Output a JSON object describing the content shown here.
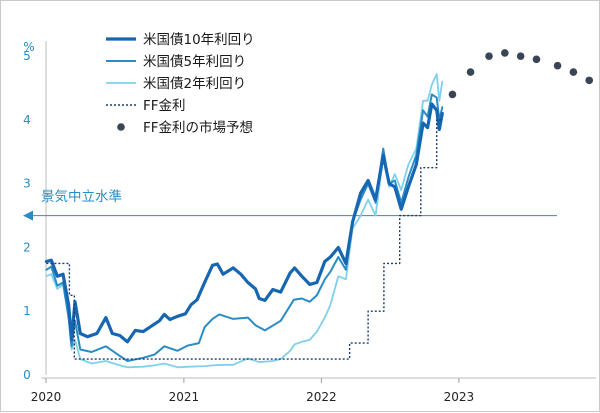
{
  "chart_data": {
    "type": "line",
    "ylabel": "%",
    "ylim": [
      0,
      5.3
    ],
    "xlim": [
      "2020-01-01",
      "2023-12-31"
    ],
    "yticks": [
      "0",
      "1",
      "2",
      "3",
      "4",
      "5"
    ],
    "xticks": [
      {
        "label": "2020",
        "date": "2020-01-01"
      },
      {
        "label": "2021",
        "date": "2021-01-01"
      },
      {
        "label": "2022",
        "date": "2022-01-01"
      },
      {
        "label": "2023",
        "date": "2023-01-01"
      }
    ],
    "reference_line": {
      "label": "景気中立水準",
      "y": 2.5,
      "color": "#2a8cc4"
    },
    "colors": {
      "y10": "#1666b1",
      "y5": "#2a8cc4",
      "y2": "#7fd0ee",
      "ff": "#1f3a6e",
      "forecast": "#3a4655",
      "axis": "#2a8cc4"
    },
    "legend": {
      "placement": "top-center",
      "items": [
        "米国債10年利回り",
        "米国債5年利回り",
        "米国債2年利回り",
        "FF金利",
        "FF金利の市場予想"
      ]
    },
    "series": [
      {
        "name": "米国債10年利回り",
        "points": [
          [
            "2020-01-02",
            1.78
          ],
          [
            "2020-01-15",
            1.8
          ],
          [
            "2020-01-31",
            1.55
          ],
          [
            "2020-02-15",
            1.58
          ],
          [
            "2020-03-01",
            1.1
          ],
          [
            "2020-03-09",
            0.55
          ],
          [
            "2020-03-18",
            1.15
          ],
          [
            "2020-04-01",
            0.65
          ],
          [
            "2020-04-20",
            0.6
          ],
          [
            "2020-05-15",
            0.65
          ],
          [
            "2020-06-08",
            0.9
          ],
          [
            "2020-06-25",
            0.65
          ],
          [
            "2020-07-15",
            0.62
          ],
          [
            "2020-08-04",
            0.52
          ],
          [
            "2020-08-25",
            0.7
          ],
          [
            "2020-09-15",
            0.68
          ],
          [
            "2020-10-10",
            0.78
          ],
          [
            "2020-10-28",
            0.85
          ],
          [
            "2020-11-10",
            0.95
          ],
          [
            "2020-11-25",
            0.87
          ],
          [
            "2020-12-15",
            0.92
          ],
          [
            "2021-01-05",
            0.96
          ],
          [
            "2021-01-20",
            1.1
          ],
          [
            "2021-02-05",
            1.18
          ],
          [
            "2021-02-25",
            1.45
          ],
          [
            "2021-03-18",
            1.72
          ],
          [
            "2021-03-31",
            1.74
          ],
          [
            "2021-04-15",
            1.58
          ],
          [
            "2021-05-12",
            1.68
          ],
          [
            "2021-06-01",
            1.58
          ],
          [
            "2021-06-20",
            1.45
          ],
          [
            "2021-07-10",
            1.35
          ],
          [
            "2021-07-20",
            1.2
          ],
          [
            "2021-08-04",
            1.17
          ],
          [
            "2021-08-25",
            1.34
          ],
          [
            "2021-09-15",
            1.3
          ],
          [
            "2021-10-10",
            1.6
          ],
          [
            "2021-10-22",
            1.68
          ],
          [
            "2021-11-10",
            1.55
          ],
          [
            "2021-12-01",
            1.42
          ],
          [
            "2021-12-20",
            1.45
          ],
          [
            "2022-01-10",
            1.78
          ],
          [
            "2022-01-25",
            1.85
          ],
          [
            "2022-02-15",
            2.0
          ],
          [
            "2022-03-07",
            1.75
          ],
          [
            "2022-03-25",
            2.4
          ],
          [
            "2022-04-15",
            2.85
          ],
          [
            "2022-05-05",
            3.05
          ],
          [
            "2022-05-25",
            2.75
          ],
          [
            "2022-06-14",
            3.45
          ],
          [
            "2022-06-30",
            3.0
          ],
          [
            "2022-07-15",
            2.95
          ],
          [
            "2022-08-01",
            2.6
          ],
          [
            "2022-08-20",
            2.95
          ],
          [
            "2022-09-10",
            3.3
          ],
          [
            "2022-09-28",
            3.95
          ],
          [
            "2022-10-10",
            3.88
          ],
          [
            "2022-10-21",
            4.25
          ],
          [
            "2022-11-03",
            4.15
          ],
          [
            "2022-11-10",
            3.85
          ],
          [
            "2022-11-18",
            4.1
          ]
        ]
      },
      {
        "name": "米国債5年利回り",
        "points": [
          [
            "2020-01-02",
            1.65
          ],
          [
            "2020-01-15",
            1.7
          ],
          [
            "2020-01-31",
            1.4
          ],
          [
            "2020-02-15",
            1.45
          ],
          [
            "2020-03-01",
            0.9
          ],
          [
            "2020-03-09",
            0.45
          ],
          [
            "2020-03-18",
            0.85
          ],
          [
            "2020-04-01",
            0.4
          ],
          [
            "2020-05-01",
            0.36
          ],
          [
            "2020-06-08",
            0.45
          ],
          [
            "2020-07-15",
            0.3
          ],
          [
            "2020-08-04",
            0.22
          ],
          [
            "2020-09-15",
            0.27
          ],
          [
            "2020-10-15",
            0.32
          ],
          [
            "2020-11-10",
            0.45
          ],
          [
            "2020-12-15",
            0.38
          ],
          [
            "2021-01-10",
            0.46
          ],
          [
            "2021-02-10",
            0.5
          ],
          [
            "2021-02-25",
            0.75
          ],
          [
            "2021-03-18",
            0.88
          ],
          [
            "2021-04-05",
            0.95
          ],
          [
            "2021-05-12",
            0.88
          ],
          [
            "2021-06-20",
            0.9
          ],
          [
            "2021-07-10",
            0.78
          ],
          [
            "2021-08-04",
            0.7
          ],
          [
            "2021-09-15",
            0.85
          ],
          [
            "2021-10-20",
            1.18
          ],
          [
            "2021-11-10",
            1.2
          ],
          [
            "2021-12-01",
            1.15
          ],
          [
            "2021-12-20",
            1.25
          ],
          [
            "2022-01-10",
            1.5
          ],
          [
            "2022-01-25",
            1.62
          ],
          [
            "2022-02-15",
            1.85
          ],
          [
            "2022-03-07",
            1.65
          ],
          [
            "2022-03-25",
            2.4
          ],
          [
            "2022-04-15",
            2.75
          ],
          [
            "2022-05-05",
            3.0
          ],
          [
            "2022-05-25",
            2.7
          ],
          [
            "2022-06-14",
            3.55
          ],
          [
            "2022-06-30",
            3.0
          ],
          [
            "2022-07-15",
            3.05
          ],
          [
            "2022-08-01",
            2.7
          ],
          [
            "2022-08-20",
            3.1
          ],
          [
            "2022-09-10",
            3.45
          ],
          [
            "2022-09-28",
            4.15
          ],
          [
            "2022-10-10",
            4.05
          ],
          [
            "2022-10-21",
            4.4
          ],
          [
            "2022-11-03",
            4.35
          ],
          [
            "2022-11-10",
            4.0
          ],
          [
            "2022-11-18",
            4.2
          ]
        ]
      },
      {
        "name": "米国債2年利回り",
        "points": [
          [
            "2020-01-02",
            1.55
          ],
          [
            "2020-01-15",
            1.58
          ],
          [
            "2020-01-31",
            1.35
          ],
          [
            "2020-02-15",
            1.42
          ],
          [
            "2020-03-01",
            0.9
          ],
          [
            "2020-03-09",
            0.4
          ],
          [
            "2020-03-18",
            0.55
          ],
          [
            "2020-04-01",
            0.25
          ],
          [
            "2020-05-01",
            0.18
          ],
          [
            "2020-06-08",
            0.22
          ],
          [
            "2020-07-15",
            0.15
          ],
          [
            "2020-08-04",
            0.12
          ],
          [
            "2020-09-15",
            0.13
          ],
          [
            "2020-10-15",
            0.15
          ],
          [
            "2020-11-10",
            0.18
          ],
          [
            "2020-12-15",
            0.12
          ],
          [
            "2021-01-15",
            0.13
          ],
          [
            "2021-02-25",
            0.14
          ],
          [
            "2021-03-18",
            0.15
          ],
          [
            "2021-04-15",
            0.16
          ],
          [
            "2021-05-12",
            0.16
          ],
          [
            "2021-06-20",
            0.26
          ],
          [
            "2021-07-20",
            0.2
          ],
          [
            "2021-08-25",
            0.22
          ],
          [
            "2021-09-15",
            0.25
          ],
          [
            "2021-10-10",
            0.38
          ],
          [
            "2021-10-22",
            0.48
          ],
          [
            "2021-11-10",
            0.52
          ],
          [
            "2021-12-01",
            0.55
          ],
          [
            "2021-12-20",
            0.68
          ],
          [
            "2022-01-10",
            0.9
          ],
          [
            "2022-01-25",
            1.1
          ],
          [
            "2022-02-15",
            1.55
          ],
          [
            "2022-03-07",
            1.5
          ],
          [
            "2022-03-25",
            2.3
          ],
          [
            "2022-04-15",
            2.5
          ],
          [
            "2022-05-05",
            2.75
          ],
          [
            "2022-05-25",
            2.5
          ],
          [
            "2022-06-14",
            3.4
          ],
          [
            "2022-06-30",
            2.95
          ],
          [
            "2022-07-15",
            3.15
          ],
          [
            "2022-08-01",
            2.9
          ],
          [
            "2022-08-20",
            3.3
          ],
          [
            "2022-09-10",
            3.55
          ],
          [
            "2022-09-28",
            4.3
          ],
          [
            "2022-10-10",
            4.3
          ],
          [
            "2022-10-21",
            4.55
          ],
          [
            "2022-11-03",
            4.72
          ],
          [
            "2022-11-10",
            4.3
          ],
          [
            "2022-11-18",
            4.6
          ]
        ]
      },
      {
        "name": "FF金利",
        "step": true,
        "points": [
          [
            "2020-01-02",
            1.75
          ],
          [
            "2020-03-03",
            1.25
          ],
          [
            "2020-03-16",
            0.25
          ],
          [
            "2022-03-17",
            0.5
          ],
          [
            "2022-05-05",
            1.0
          ],
          [
            "2022-06-16",
            1.75
          ],
          [
            "2022-07-28",
            2.5
          ],
          [
            "2022-09-22",
            3.25
          ],
          [
            "2022-11-03",
            4.0
          ],
          [
            "2022-11-18",
            4.0
          ]
        ]
      },
      {
        "name": "FF金利の市場予想",
        "marker_only": true,
        "points": [
          [
            "2022-12-15",
            4.4
          ],
          [
            "2023-02-01",
            4.75
          ],
          [
            "2023-03-22",
            5.0
          ],
          [
            "2023-05-03",
            5.05
          ],
          [
            "2023-06-14",
            5.0
          ],
          [
            "2023-07-26",
            4.95
          ],
          [
            "2023-09-20",
            4.85
          ],
          [
            "2023-11-01",
            4.75
          ],
          [
            "2023-12-13",
            4.62
          ]
        ]
      }
    ]
  }
}
